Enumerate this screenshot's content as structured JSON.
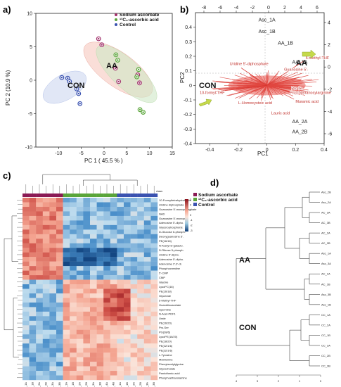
{
  "panel_labels": [
    "a)",
    "b)",
    "c)",
    "d)"
  ],
  "chart_data": [
    {
      "type": "scatter",
      "panel": "a)",
      "xlabel": "PC 1 ( 45.5 % )",
      "ylabel": "PC 2 (10.9 %)",
      "xlim": [
        -15,
        15
      ],
      "ylim": [
        -10,
        10
      ],
      "xticks": [
        -10,
        -5,
        0,
        5,
        10,
        15
      ],
      "yticks": [
        -10,
        -5,
        0,
        5,
        10
      ],
      "legend": {
        "position": "top-right",
        "entries": [
          "Sodium ascorbate",
          "¹³C₆-ascorbic acid",
          "Control"
        ],
        "colors": [
          "#a0306a",
          "#5aa53a",
          "#3a52b0"
        ]
      },
      "group_labels": [
        "AA",
        "CON"
      ],
      "series": [
        {
          "name": "Sodium ascorbate",
          "color": "#a0306a",
          "x": [
            -1.2,
            -0.5,
            2.5,
            3.2,
            7.4,
            7.8
          ],
          "y": [
            6.2,
            5.3,
            1.8,
            -0.2,
            0.8,
            -0.4
          ]
        },
        {
          "name": "¹³C₆-ascorbic acid",
          "color": "#5aa53a",
          "x": [
            2.6,
            3.0,
            7.2,
            7.6,
            7.9,
            8.6
          ],
          "y": [
            3.8,
            3.0,
            0.5,
            1.6,
            -4.4,
            -4.8
          ]
        },
        {
          "name": "Control",
          "color": "#3a52b0",
          "x": [
            -9.3,
            -8.0,
            -7.6,
            -6.0,
            -5.6,
            -5.3
          ],
          "y": [
            0.4,
            0.3,
            -0.2,
            -1.3,
            -2.0,
            -3.5
          ]
        }
      ]
    },
    {
      "type": "scatter",
      "panel": "b)",
      "xlabel": "PC1",
      "ylabel": "PC2",
      "xlim": [
        -0.5,
        0.4
      ],
      "ylim": [
        -0.4,
        0.5
      ],
      "xticks_bottom": [
        -0.4,
        -0.2,
        0,
        0.2,
        0.4
      ],
      "xticks_top": [
        -8,
        -6,
        -4,
        -2,
        0,
        2,
        4,
        6
      ],
      "yticks_left": [
        -0.4,
        -0.3,
        -0.2,
        -0.1,
        0,
        0.1,
        0.2,
        0.3,
        0.4
      ],
      "yticks_right": [
        -6,
        -4,
        -2,
        0,
        2,
        4
      ],
      "group_labels": [
        "CON",
        "AA"
      ],
      "sample_labels": [
        {
          "text": "Asc_1A",
          "x": 0.0,
          "y": 0.44
        },
        {
          "text": "Asc_1B",
          "x": 0.0,
          "y": 0.36
        },
        {
          "text": "AA_1B",
          "x": 0.13,
          "y": 0.28
        },
        {
          "text": "AA_1A",
          "x": 0.23,
          "y": 0.15
        },
        {
          "text": "AA_2A",
          "x": 0.23,
          "y": -0.26
        },
        {
          "text": "AA_2B",
          "x": 0.23,
          "y": -0.33
        }
      ],
      "variable_labels": [
        {
          "text": "5-methyl-THF",
          "x": 0.27,
          "y": 0.18
        },
        {
          "text": "Uridine 5'-diphosphate",
          "x": -0.26,
          "y": 0.14
        },
        {
          "text": "10-formyl-THF",
          "x": -0.47,
          "y": -0.06
        },
        {
          "text": "L-Homocysteic acid",
          "x": -0.2,
          "y": -0.13
        },
        {
          "text": "Lauric acid",
          "x": 0.03,
          "y": -0.2
        },
        {
          "text": "Fructopyranosylarginine",
          "x": 0.16,
          "y": -0.06
        },
        {
          "text": "Muramic acid",
          "x": 0.2,
          "y": -0.12
        },
        {
          "text": "Guanosine 5'-",
          "x": 0.12,
          "y": 0.1
        },
        {
          "text": "Pro Ile",
          "x": 0.17,
          "y": -0.03
        }
      ]
    }
  ],
  "heatmap": {
    "panel": "c)",
    "legend_title": "class",
    "legend_entries": [
      "Sodium ascorbate",
      "¹³C₆-ascorbic acid",
      "Control"
    ],
    "scale_ticks": [
      "3",
      "2",
      "1",
      "0",
      "-1",
      "-2",
      "-3"
    ],
    "columns": [
      "AC_1A",
      "AC_1B",
      "AC_2A",
      "AC_2B",
      "AC_3A",
      "AC_3B",
      "AA_1A",
      "AA_1B",
      "AA_2A",
      "AA_2B",
      "AA_3A",
      "AA_3B",
      "AA_4A",
      "AA_4B",
      "Asc_1A",
      "Asc_1B",
      "Asc_2A",
      "Asc_2B",
      "Asc_3A",
      "Asc_3B"
    ],
    "rows": [
      "10-Formyltetrahydrofolate",
      "Uridine diphosphate",
      "Guanosine 5'-monophosphate",
      "NAD",
      "Guanosine 5'-monop.",
      "Adenosine 5'-dipho.",
      "Glycerophosphoryl.",
      "D-Glucose 6-phosph.",
      "Deoxyguanosine 5'.",
      "PE(16/16)",
      "N-Acetyl-D-galacto.",
      "D-Ribose 5-phosph.",
      "Uridine 5'-dipho.",
      "Adenosine 5'-dipho.",
      "Adenosine 2',3'-di.",
      "Phosphocreatine",
      "5'-CMP",
      "CMP",
      "Glycine",
      "LysoPC(16)",
      "PE(16/18)",
      "Glycerate",
      "5-Methyl-THF",
      "Guanidinoacetate",
      "Spermine",
      "N-Acet-PDF1",
      "Urate",
      "PE(16/20)",
      "Pro-Ser",
      "PG(38/6)",
      "LysoPE(16/20)",
      "PE(18/20)",
      "PE(22/1/6)",
      "PE(22/1/6)",
      "L-Tyrosine",
      "Methionine",
      "Phenylacetylglycine",
      "Glycocholate",
      "Pantothenic acid",
      "Phosphoethanolamine"
    ]
  },
  "dendrogram": {
    "panel": "d)",
    "group_labels": [
      "AA",
      "CON"
    ],
    "leaves": [
      "Asc_2B",
      "Asc_2A",
      "AC_3A",
      "AC_3B",
      "AC_2A",
      "AC_2B",
      "Asc_1A",
      "Asc_3A",
      "AC_1A",
      "AC_1B",
      "Asc_3B",
      "Asc_1B",
      "CC_1A",
      "CC_2A",
      "CC_1B",
      "CC_3A",
      "CC_2B",
      "CC_3B"
    ],
    "leaf_colors": [
      "#c0302b",
      "#c0302b",
      "#5aa53a",
      "#5aa53a",
      "#5aa53a",
      "#5aa53a",
      "#c0302b",
      "#c0302b",
      "#5aa53a",
      "#5aa53a",
      "#c0302b",
      "#c0302b",
      "#3a52b0",
      "#3a52b0",
      "#3a52b0",
      "#3a52b0",
      "#3a52b0",
      "#3a52b0"
    ],
    "axis_ticks": [
      "4",
      "3",
      "2",
      "1",
      "0"
    ]
  },
  "colors": {
    "sodium": "#a0306a",
    "c13": "#5aa53a",
    "control": "#3a52b0",
    "arrow_red": "#d8352f",
    "arrow_yellow": "#c5d94a"
  }
}
